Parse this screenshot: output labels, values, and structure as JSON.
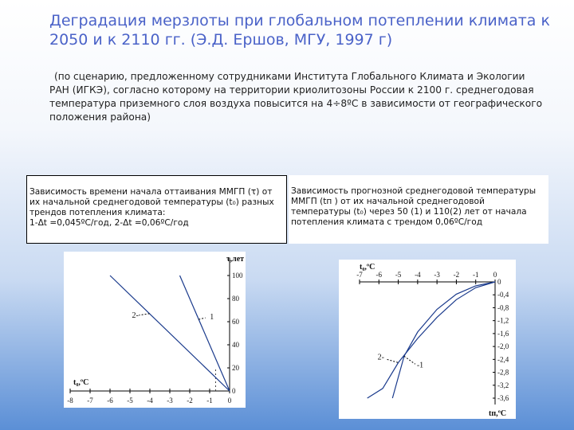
{
  "title": "Деградация мерзлоты при глобальном потеплении климата к 2050 и к 2110 гг. (Э.Д. Ершов, МГУ, 1997 г)",
  "subtitle": "(по сценарию, предложенному сотрудниками Института Глобального Климата и Экологии РАН (ИГКЭ), согласно которому на территории криолитозоны России к 2100 г. среднегодовая температура приземного слоя воздуха повысится на 4÷8ºС в зависимости от географического положения района)",
  "left_caption": {
    "line1": "Зависимость времени начала оттаивания ММГП (τ) от их начальной среднегодовой температуры (t₀) разных трендов потепления климата:",
    "line2": "1-Δt =0,045ºС/год, 2-Δt =0,06ºС/год"
  },
  "right_caption": {
    "text": "Зависимость прогнозной среднегодовой температуры ММГП (tп ) от их начальной среднегодовой температуры (t₀) через 50 (1) и 110(2) лет от начала потепления климата с трендом 0,06ºС/год"
  },
  "chart_data": [
    {
      "type": "line",
      "x_axis_label": "t₀,ºC",
      "y_axis_label": "τ,лет",
      "x_ticks": [
        "-8",
        "-7",
        "-6",
        "-5",
        "-4",
        "-3",
        "-2",
        "-1",
        "0"
      ],
      "y_ticks": [
        "0",
        "20",
        "40",
        "60",
        "80",
        "100"
      ],
      "xlim": [
        -8,
        0
      ],
      "ylim": [
        0,
        100
      ],
      "series": [
        {
          "name": "1",
          "style": "solid",
          "points": [
            [
              0,
              0
            ],
            [
              -2.5,
              100
            ]
          ]
        },
        {
          "name": "2",
          "style": "solid",
          "points": [
            [
              0,
              0
            ],
            [
              -6,
              100
            ]
          ]
        }
      ],
      "dashed_guides": [
        [
          -0.7,
          0
        ],
        [
          -0.7,
          20
        ]
      ]
    },
    {
      "type": "line",
      "x_axis_label": "t₀,ºC",
      "y_axis_label": "tп,ºC",
      "x_ticks": [
        "-7",
        "-6",
        "-5",
        "-4",
        "-3",
        "-2",
        "-1",
        "0"
      ],
      "y_ticks": [
        "0",
        "-0,4",
        "-0,8",
        "-1,2",
        "-1,6",
        "-2,0",
        "-2,4",
        "-2,8",
        "-3,2",
        "-3,6"
      ],
      "xlim": [
        -7,
        0
      ],
      "ylim": [
        -3.6,
        0
      ],
      "series": [
        {
          "name": "1",
          "points": [
            [
              0,
              0
            ],
            [
              -1,
              -0.12
            ],
            [
              -2,
              -0.38
            ],
            [
              -3,
              -0.85
            ],
            [
              -4,
              -1.55
            ],
            [
              -4.7,
              -2.3
            ],
            [
              -5.3,
              -3.6
            ]
          ]
        },
        {
          "name": "2",
          "points": [
            [
              0,
              0
            ],
            [
              -1,
              -0.18
            ],
            [
              -2,
              -0.55
            ],
            [
              -3,
              -1.1
            ],
            [
              -4,
              -1.75
            ],
            [
              -5,
              -2.5
            ],
            [
              -5.8,
              -3.3
            ],
            [
              -6.6,
              -3.6
            ]
          ]
        }
      ]
    }
  ]
}
